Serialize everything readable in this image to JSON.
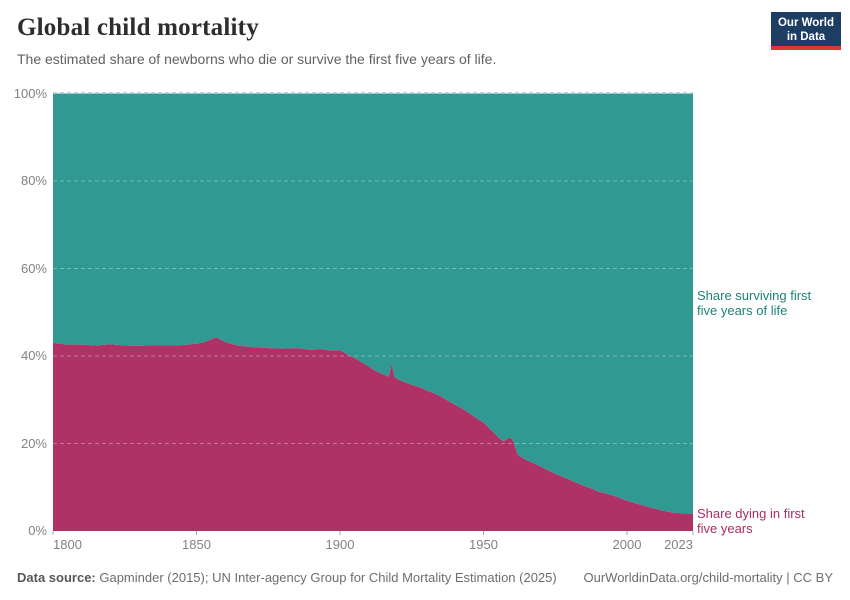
{
  "header": {
    "title": "Global child mortality",
    "subtitle": "The estimated share of newborns who die or survive the first five years of life.",
    "logo": {
      "line1": "Our World",
      "line2": "in Data",
      "bg_color": "#1d3d63",
      "accent_color": "#d73a32"
    }
  },
  "chart_data": {
    "type": "area",
    "stacked": true,
    "title": "Global child mortality",
    "xlabel": "",
    "ylabel": "",
    "xlim": [
      1800,
      2023
    ],
    "ylim": [
      0,
      100
    ],
    "grid": "dashed-horizontal",
    "legend_position": "right-annotations",
    "x_ticks": [
      1800,
      1850,
      1900,
      1950,
      2000,
      2023
    ],
    "x_tick_labels": [
      "1800",
      "1850",
      "1900",
      "1950",
      "2000",
      "2023"
    ],
    "y_ticks": [
      0,
      20,
      40,
      60,
      80,
      100
    ],
    "y_tick_labels": [
      "0%",
      "20%",
      "40%",
      "60%",
      "80%",
      "100%"
    ],
    "x": [
      1800,
      1805,
      1810,
      1815,
      1820,
      1825,
      1830,
      1835,
      1840,
      1845,
      1850,
      1853,
      1855,
      1857,
      1859,
      1862,
      1865,
      1870,
      1875,
      1880,
      1885,
      1890,
      1893,
      1896,
      1900,
      1903,
      1906,
      1909,
      1912,
      1915,
      1917,
      1918,
      1919,
      1921,
      1925,
      1928,
      1930,
      1933,
      1935,
      1938,
      1940,
      1943,
      1945,
      1948,
      1950,
      1952,
      1954,
      1956,
      1957,
      1959,
      1960,
      1962,
      1964,
      1966,
      1968,
      1970,
      1973,
      1976,
      1979,
      1982,
      1985,
      1988,
      1990,
      1993,
      1996,
      2000,
      2004,
      2008,
      2012,
      2016,
      2020,
      2023
    ],
    "series": [
      {
        "name": "Share dying in first five years",
        "annotation_lines": [
          "Share dying in first",
          "five years"
        ],
        "color": "#ae3266",
        "label_color": "#a92e63",
        "values": [
          43.0,
          42.6,
          42.6,
          42.4,
          42.7,
          42.4,
          42.3,
          42.5,
          42.4,
          42.5,
          42.8,
          43.2,
          43.8,
          44.3,
          43.5,
          42.8,
          42.3,
          42.0,
          41.8,
          41.7,
          41.8,
          41.4,
          41.6,
          41.3,
          41.3,
          40.2,
          39.2,
          38.0,
          36.7,
          35.8,
          35.3,
          38.1,
          35.1,
          34.4,
          33.4,
          32.8,
          32.2,
          31.4,
          30.8,
          29.6,
          28.9,
          27.8,
          26.9,
          25.6,
          24.8,
          23.5,
          22.2,
          20.9,
          20.5,
          21.3,
          21.0,
          17.4,
          16.5,
          15.9,
          15.3,
          14.7,
          13.7,
          12.8,
          12.0,
          11.1,
          10.3,
          9.6,
          9.0,
          8.5,
          7.9,
          6.9,
          6.1,
          5.4,
          4.7,
          4.2,
          4.0,
          3.9
        ]
      },
      {
        "name": "Share surviving first five years of life",
        "annotation_lines": [
          "Share surviving first",
          "five years of life"
        ],
        "color": "#309a92",
        "label_color": "#1d8378",
        "values": [
          57.0,
          57.4,
          57.4,
          57.6,
          57.3,
          57.6,
          57.7,
          57.5,
          57.6,
          57.5,
          57.2,
          56.8,
          56.2,
          55.7,
          56.5,
          57.2,
          57.7,
          58.0,
          58.2,
          58.3,
          58.2,
          58.6,
          58.4,
          58.7,
          58.7,
          59.8,
          60.8,
          62.0,
          63.3,
          64.2,
          64.7,
          61.9,
          64.9,
          65.6,
          66.6,
          67.2,
          67.8,
          68.6,
          69.2,
          70.4,
          71.1,
          72.2,
          73.1,
          74.4,
          75.2,
          76.5,
          77.8,
          79.1,
          79.5,
          78.7,
          79.0,
          82.6,
          83.5,
          84.1,
          84.7,
          85.3,
          86.3,
          87.2,
          88.0,
          88.9,
          89.7,
          90.4,
          91.0,
          91.5,
          92.1,
          93.1,
          93.9,
          94.6,
          95.3,
          95.8,
          96.0,
          96.1
        ]
      }
    ]
  },
  "footer": {
    "datasource_label": "Data source:",
    "datasource_text": " Gapminder (2015); UN Inter-agency Group for Child Mortality Estimation (2025)",
    "right_text": "OurWorldinData.org/child-mortality | CC BY"
  }
}
